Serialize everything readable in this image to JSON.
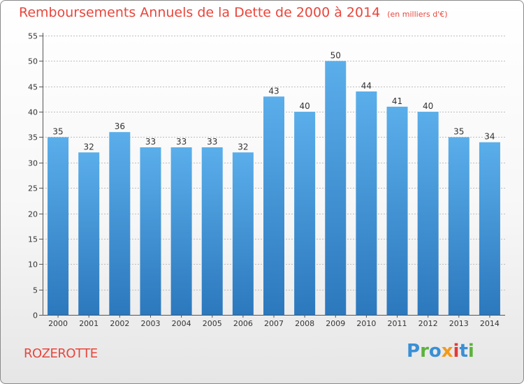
{
  "header": {
    "title": "Remboursements Annuels de la Dette de 2000 à 2014",
    "subtitle": "(en milliers d'€)"
  },
  "footer": {
    "commune": "ROZEROTTE",
    "brand": "Proxiti"
  },
  "colors": {
    "title": "#e8463c",
    "bar_top": "#5aaeea",
    "bar_bottom": "#2c78bd",
    "grid": "#bdbdbd"
  },
  "chart_data": {
    "type": "bar",
    "title": "Remboursements Annuels de la Dette de 2000 à 2014",
    "subtitle": "(en milliers d'€)",
    "xlabel": "",
    "ylabel": "",
    "categories": [
      "2000",
      "2001",
      "2002",
      "2003",
      "2004",
      "2005",
      "2006",
      "2007",
      "2008",
      "2009",
      "2010",
      "2011",
      "2012",
      "2013",
      "2014"
    ],
    "values": [
      35,
      32,
      36,
      33,
      33,
      33,
      32,
      43,
      40,
      50,
      44,
      41,
      40,
      35,
      34
    ],
    "ylim": [
      0,
      55
    ],
    "yticks": [
      0,
      5,
      10,
      15,
      20,
      25,
      30,
      35,
      40,
      45,
      50,
      55
    ],
    "grid": true,
    "legend": "none"
  }
}
